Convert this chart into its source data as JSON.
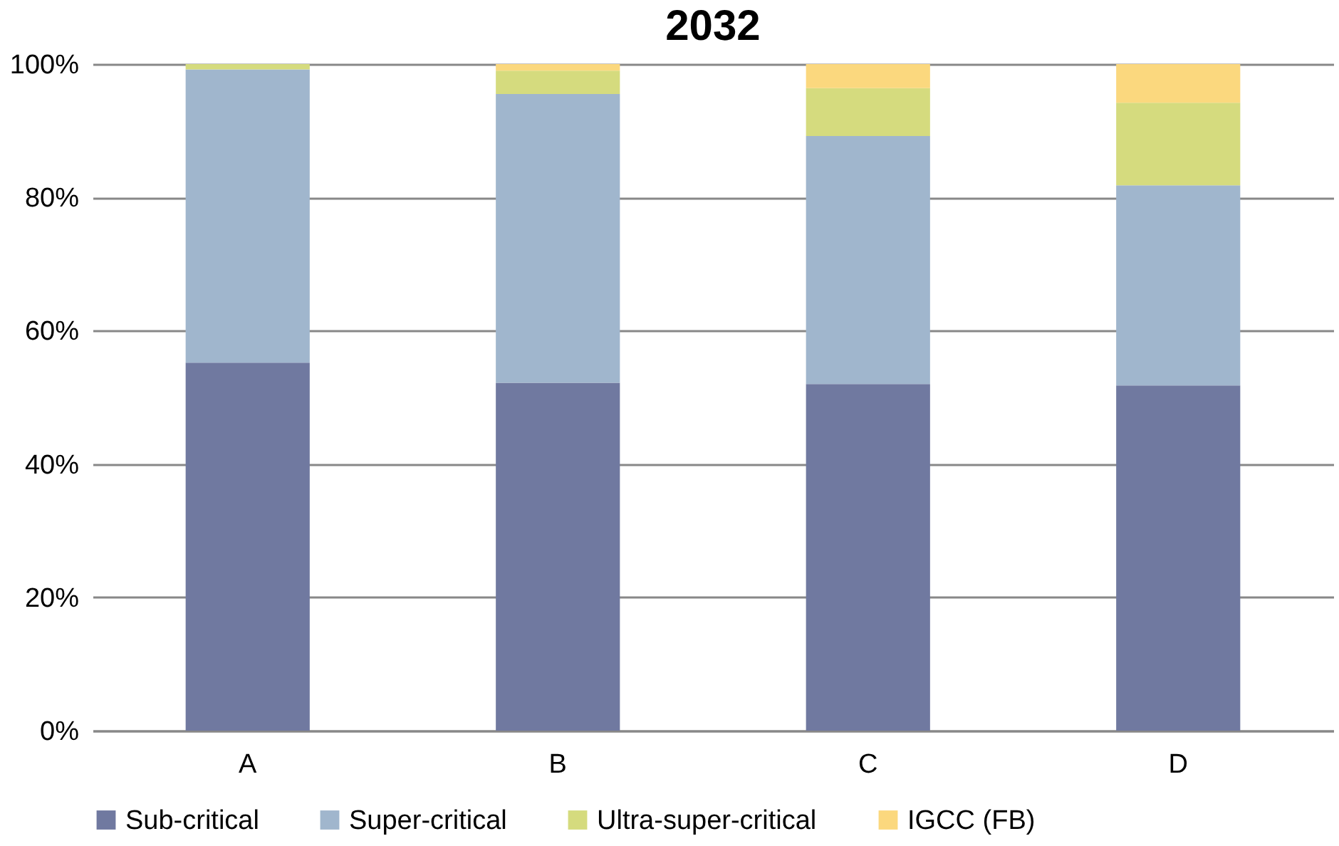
{
  "chart_data": {
    "type": "bar",
    "title": "2032",
    "stacked": true,
    "categories": [
      "A",
      "B",
      "C",
      "D"
    ],
    "series": [
      {
        "name": "Sub-critical",
        "color": "#7079a0",
        "values": [
          55.2,
          52.2,
          52.0,
          51.8
        ]
      },
      {
        "name": "Super-critical",
        "color": "#a0b6cd",
        "values": [
          44.0,
          43.3,
          37.2,
          30.0
        ]
      },
      {
        "name": "Ultra-super-critical",
        "color": "#d5db7e",
        "values": [
          0.8,
          3.5,
          7.2,
          12.4
        ]
      },
      {
        "name": "IGCC (FB)",
        "color": "#fbd87e",
        "values": [
          0,
          1.0,
          3.6,
          5.8
        ]
      }
    ],
    "ylim": [
      0,
      100
    ],
    "yticks": [
      {
        "value": 0,
        "label": "0%"
      },
      {
        "value": 20,
        "label": "20%"
      },
      {
        "value": 40,
        "label": "40%"
      },
      {
        "value": 60,
        "label": "60%"
      },
      {
        "value": 80,
        "label": "80%"
      },
      {
        "value": 100,
        "label": "100%"
      }
    ],
    "grid": "y",
    "legend": "bottom"
  }
}
